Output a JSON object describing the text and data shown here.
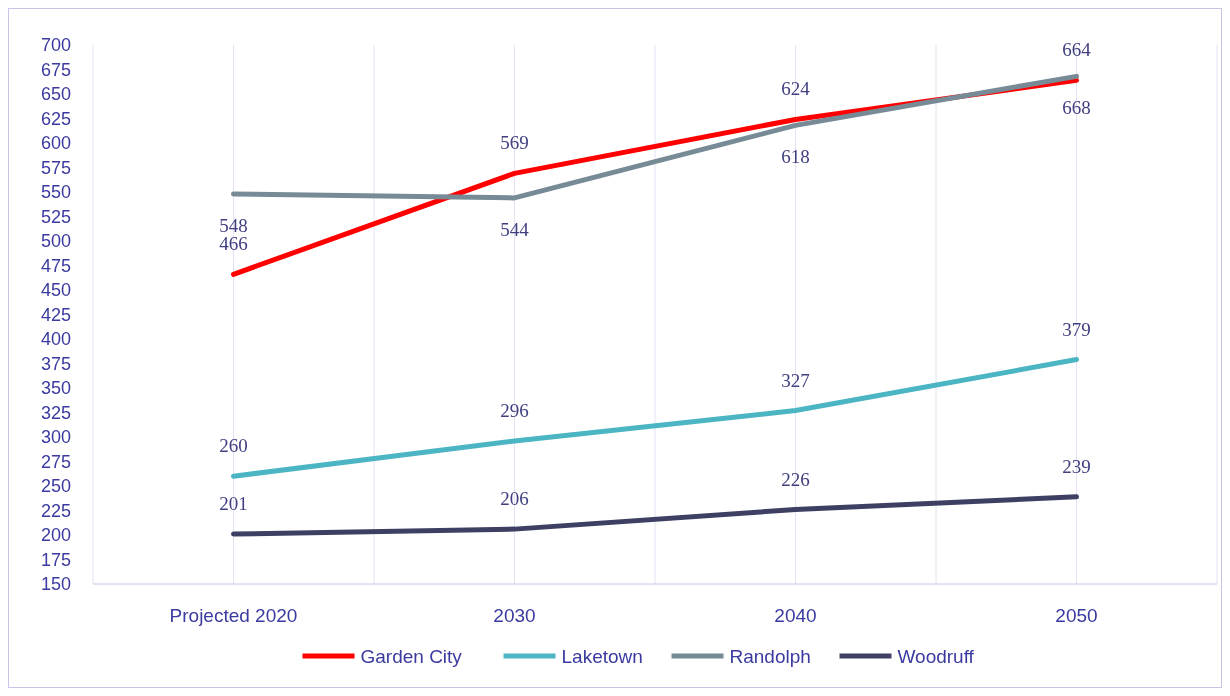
{
  "chart_data": {
    "type": "line",
    "categories": [
      "Projected 2020",
      "2030",
      "2040",
      "2050"
    ],
    "series": [
      {
        "name": "Garden City",
        "color": "#ff0000",
        "values": [
          466,
          569,
          624,
          664
        ]
      },
      {
        "name": "Laketown",
        "color": "#4bb5c3",
        "values": [
          260,
          296,
          327,
          379
        ]
      },
      {
        "name": "Randolph",
        "color": "#778b97",
        "values": [
          548,
          544,
          618,
          668
        ]
      },
      {
        "name": "Woodruff",
        "color": "#3d3f63",
        "values": [
          201,
          206,
          226,
          239
        ]
      }
    ],
    "ylim": [
      150,
      700
    ],
    "yticks": [
      150,
      175,
      200,
      225,
      250,
      275,
      300,
      325,
      350,
      375,
      400,
      425,
      450,
      475,
      500,
      525,
      550,
      575,
      600,
      625,
      650,
      675,
      700
    ],
    "grid": "x",
    "legend": "bottom",
    "data_labels": true,
    "marker": "none",
    "line_style": "solid"
  }
}
